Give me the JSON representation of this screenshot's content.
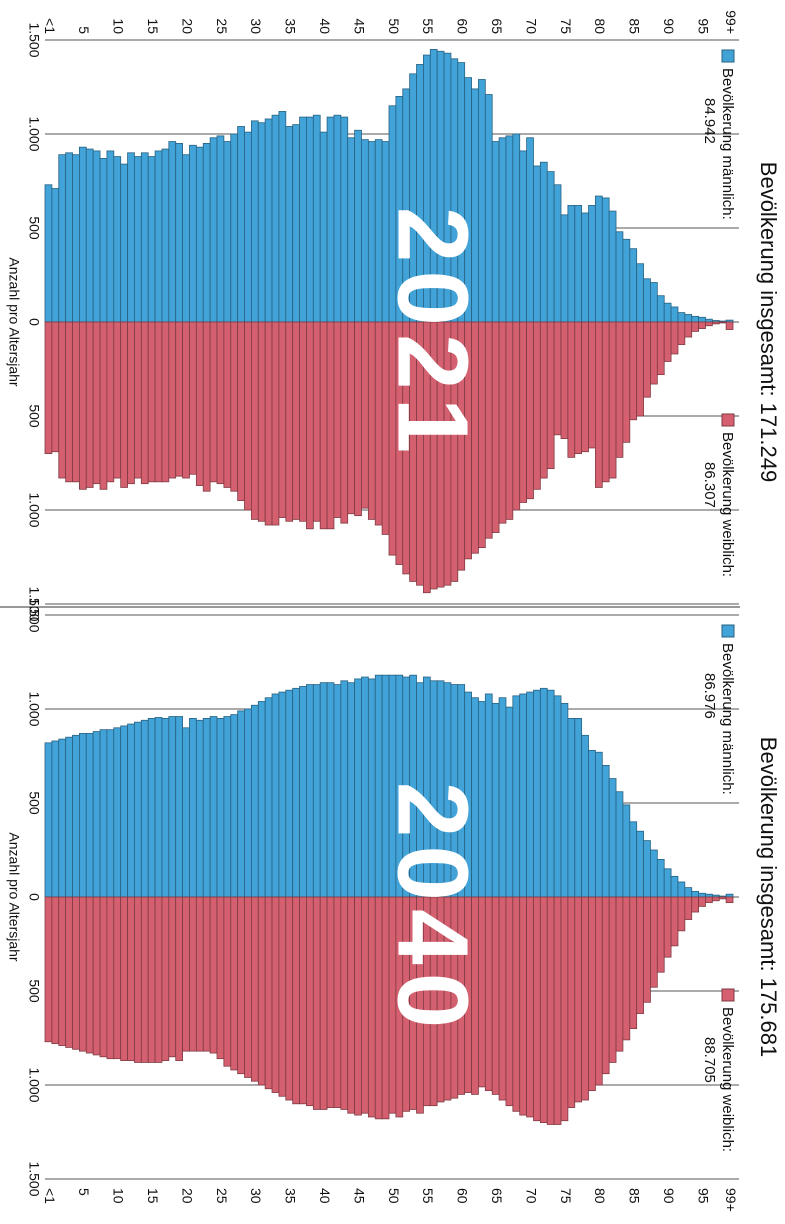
{
  "chart_data": [
    {
      "type": "pyramid",
      "title": "Bevölkerung insgesamt: 171.249",
      "annotation": "2021",
      "xlabel": "Anzahl pro Altersjahr",
      "categories": [
        "<1",
        null,
        null,
        null,
        null,
        "5",
        null,
        null,
        null,
        null,
        "10",
        null,
        null,
        null,
        null,
        "15",
        null,
        null,
        null,
        null,
        "20",
        null,
        null,
        null,
        null,
        "25",
        null,
        null,
        null,
        null,
        "30",
        null,
        null,
        null,
        null,
        "35",
        null,
        null,
        null,
        null,
        "40",
        null,
        null,
        null,
        null,
        "45",
        null,
        null,
        null,
        null,
        "50",
        null,
        null,
        null,
        null,
        "55",
        null,
        null,
        null,
        null,
        "60",
        null,
        null,
        null,
        null,
        "65",
        null,
        null,
        null,
        null,
        "70",
        null,
        null,
        null,
        null,
        "75",
        null,
        null,
        null,
        null,
        "80",
        null,
        null,
        null,
        null,
        "85",
        null,
        null,
        null,
        null,
        "90",
        null,
        null,
        null,
        null,
        "95",
        null,
        null,
        null,
        "99+"
      ],
      "xlim": [
        -1500,
        1500
      ],
      "xticks": [
        {
          "value": -1500,
          "label": "1.500"
        },
        {
          "value": -1000,
          "label": "1.000"
        },
        {
          "value": -500,
          "label": "500"
        },
        0,
        500,
        {
          "value": 1000,
          "label": "1.000"
        },
        {
          "value": 1500,
          "label": "1.500"
        }
      ],
      "grid": true,
      "series": [
        {
          "name": "Bevölkerung männlich:",
          "total": "84.942",
          "color": "#41a3d8",
          "side": "left",
          "values": [
            730,
            710,
            890,
            900,
            890,
            930,
            920,
            910,
            870,
            910,
            880,
            840,
            900,
            880,
            900,
            880,
            910,
            920,
            960,
            950,
            890,
            940,
            930,
            950,
            980,
            990,
            960,
            1000,
            1040,
            1010,
            1070,
            1060,
            1080,
            1100,
            1120,
            1040,
            1050,
            1090,
            1090,
            1100,
            1010,
            1090,
            1100,
            1090,
            980,
            1020,
            970,
            960,
            970,
            960,
            1150,
            1200,
            1240,
            1320,
            1370,
            1420,
            1450,
            1440,
            1430,
            1400,
            1380,
            1300,
            1240,
            1290,
            1210,
            960,
            980,
            990,
            1000,
            910,
            980,
            830,
            850,
            800,
            730,
            570,
            620,
            620,
            580,
            620,
            670,
            660,
            590,
            480,
            440,
            390,
            310,
            230,
            210,
            140,
            100,
            80,
            50,
            40,
            30,
            25,
            15,
            8,
            5,
            10
          ]
        },
        {
          "name": "Bevölkerung weiblich:",
          "total": "86.307",
          "color": "#d4606f",
          "side": "right",
          "values": [
            700,
            690,
            830,
            850,
            850,
            890,
            880,
            860,
            890,
            850,
            830,
            880,
            860,
            830,
            860,
            850,
            850,
            850,
            830,
            820,
            830,
            810,
            870,
            900,
            850,
            860,
            880,
            900,
            950,
            1000,
            1050,
            1060,
            1080,
            1080,
            1040,
            1060,
            1050,
            1060,
            1100,
            1060,
            1100,
            1100,
            1040,
            1070,
            1020,
            1030,
            990,
            1050,
            1080,
            1130,
            1240,
            1290,
            1340,
            1380,
            1400,
            1440,
            1420,
            1410,
            1400,
            1380,
            1320,
            1260,
            1230,
            1200,
            1150,
            1120,
            1070,
            1050,
            1000,
            960,
            940,
            890,
            830,
            780,
            600,
            620,
            720,
            700,
            690,
            670,
            880,
            850,
            830,
            720,
            640,
            520,
            500,
            400,
            330,
            280,
            210,
            170,
            120,
            80,
            50,
            35,
            20,
            10,
            5,
            40
          ]
        }
      ]
    },
    {
      "type": "pyramid",
      "title": "Bevölkerung insgesamt: 175.681",
      "annotation": "2040",
      "xlabel": "Anzahl pro Altersjahr",
      "categories": [
        "<1",
        null,
        null,
        null,
        null,
        "5",
        null,
        null,
        null,
        null,
        "10",
        null,
        null,
        null,
        null,
        "15",
        null,
        null,
        null,
        null,
        "20",
        null,
        null,
        null,
        null,
        "25",
        null,
        null,
        null,
        null,
        "30",
        null,
        null,
        null,
        null,
        "35",
        null,
        null,
        null,
        null,
        "40",
        null,
        null,
        null,
        null,
        "45",
        null,
        null,
        null,
        null,
        "50",
        null,
        null,
        null,
        null,
        "55",
        null,
        null,
        null,
        null,
        "60",
        null,
        null,
        null,
        null,
        "65",
        null,
        null,
        null,
        null,
        "70",
        null,
        null,
        null,
        null,
        "75",
        null,
        null,
        null,
        null,
        "80",
        null,
        null,
        null,
        null,
        "85",
        null,
        null,
        null,
        null,
        "90",
        null,
        null,
        null,
        null,
        "95",
        null,
        null,
        null,
        "99+"
      ],
      "xlim": [
        -1500,
        1500
      ],
      "xticks": [
        {
          "value": -1500,
          "label": "1.500"
        },
        {
          "value": -1000,
          "label": "1.000"
        },
        {
          "value": -500,
          "label": "500"
        },
        0,
        500,
        {
          "value": 1000,
          "label": "1.000"
        },
        {
          "value": 1500,
          "label": "1.500"
        }
      ],
      "grid": true,
      "series": [
        {
          "name": "Bevölkerung männlich:",
          "total": "86.976",
          "color": "#41a3d8",
          "side": "left",
          "values": [
            820,
            830,
            840,
            850,
            860,
            870,
            870,
            880,
            890,
            890,
            900,
            910,
            920,
            930,
            940,
            950,
            955,
            950,
            960,
            960,
            900,
            950,
            940,
            950,
            960,
            950,
            960,
            970,
            990,
            1000,
            1020,
            1040,
            1060,
            1080,
            1090,
            1100,
            1110,
            1120,
            1130,
            1130,
            1140,
            1140,
            1130,
            1150,
            1140,
            1160,
            1170,
            1160,
            1180,
            1180,
            1180,
            1180,
            1170,
            1180,
            1140,
            1170,
            1150,
            1150,
            1140,
            1130,
            1130,
            1090,
            1060,
            1040,
            1080,
            1030,
            1060,
            1010,
            1070,
            1080,
            1090,
            1100,
            1110,
            1100,
            1070,
            1030,
            950,
            950,
            860,
            780,
            770,
            700,
            630,
            560,
            490,
            400,
            350,
            300,
            250,
            200,
            150,
            110,
            80,
            50,
            30,
            20,
            15,
            10,
            5,
            15
          ]
        },
        {
          "name": "Bevölkerung weiblich:",
          "total": "88.705",
          "color": "#d4606f",
          "side": "right",
          "values": [
            770,
            780,
            790,
            800,
            810,
            820,
            830,
            840,
            850,
            860,
            860,
            870,
            870,
            880,
            880,
            880,
            880,
            870,
            850,
            870,
            820,
            820,
            820,
            820,
            830,
            860,
            900,
            920,
            940,
            960,
            980,
            1000,
            1020,
            1040,
            1060,
            1080,
            1100,
            1100,
            1110,
            1130,
            1130,
            1120,
            1120,
            1130,
            1150,
            1160,
            1150,
            1170,
            1180,
            1180,
            1150,
            1170,
            1140,
            1130,
            1150,
            1110,
            1110,
            1090,
            1080,
            1070,
            1050,
            1040,
            1050,
            1010,
            1030,
            1050,
            1080,
            1110,
            1140,
            1160,
            1170,
            1190,
            1200,
            1210,
            1210,
            1190,
            1120,
            1090,
            1080,
            1030,
            1000,
            940,
            880,
            820,
            760,
            700,
            620,
            560,
            480,
            400,
            320,
            260,
            180,
            120,
            80,
            50,
            30,
            20,
            10,
            30
          ]
        }
      ]
    }
  ]
}
